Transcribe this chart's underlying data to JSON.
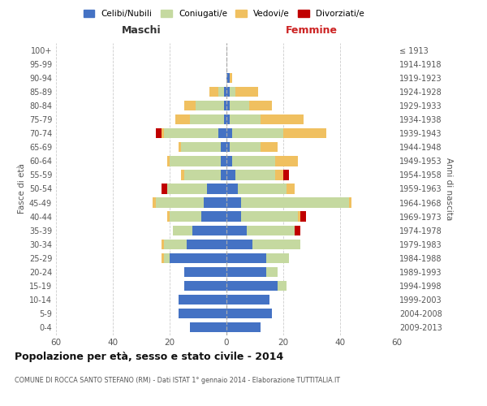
{
  "age_groups": [
    "0-4",
    "5-9",
    "10-14",
    "15-19",
    "20-24",
    "25-29",
    "30-34",
    "35-39",
    "40-44",
    "45-49",
    "50-54",
    "55-59",
    "60-64",
    "65-69",
    "70-74",
    "75-79",
    "80-84",
    "85-89",
    "90-94",
    "95-99",
    "100+"
  ],
  "birth_years": [
    "2009-2013",
    "2004-2008",
    "1999-2003",
    "1994-1998",
    "1989-1993",
    "1984-1988",
    "1979-1983",
    "1974-1978",
    "1969-1973",
    "1964-1968",
    "1959-1963",
    "1954-1958",
    "1949-1953",
    "1944-1948",
    "1939-1943",
    "1934-1938",
    "1929-1933",
    "1924-1928",
    "1919-1923",
    "1914-1918",
    "≤ 1913"
  ],
  "male": {
    "celibi": [
      13,
      17,
      17,
      15,
      15,
      20,
      14,
      12,
      9,
      8,
      7,
      2,
      2,
      2,
      3,
      1,
      1,
      1,
      0,
      0,
      0
    ],
    "coniugati": [
      0,
      0,
      0,
      0,
      0,
      2,
      8,
      7,
      11,
      17,
      14,
      13,
      18,
      14,
      19,
      12,
      10,
      2,
      0,
      0,
      0
    ],
    "vedovi": [
      0,
      0,
      0,
      0,
      0,
      1,
      1,
      0,
      1,
      1,
      0,
      1,
      1,
      1,
      1,
      5,
      4,
      3,
      0,
      0,
      0
    ],
    "divorziati": [
      0,
      0,
      0,
      0,
      0,
      0,
      0,
      0,
      0,
      0,
      2,
      0,
      0,
      0,
      2,
      0,
      0,
      0,
      0,
      0,
      0
    ]
  },
  "female": {
    "nubili": [
      12,
      16,
      15,
      18,
      14,
      14,
      9,
      7,
      5,
      5,
      4,
      3,
      2,
      1,
      2,
      1,
      1,
      1,
      1,
      0,
      0
    ],
    "coniugate": [
      0,
      0,
      0,
      3,
      4,
      8,
      17,
      17,
      20,
      38,
      17,
      14,
      15,
      11,
      18,
      11,
      7,
      2,
      0,
      0,
      0
    ],
    "vedove": [
      0,
      0,
      0,
      0,
      0,
      0,
      0,
      0,
      1,
      1,
      3,
      3,
      8,
      6,
      15,
      15,
      8,
      8,
      1,
      0,
      0
    ],
    "divorziate": [
      0,
      0,
      0,
      0,
      0,
      0,
      0,
      2,
      2,
      0,
      0,
      2,
      0,
      0,
      0,
      0,
      0,
      0,
      0,
      0,
      0
    ]
  },
  "colors": {
    "celibi_nubili": "#4472c4",
    "coniugati_e": "#c5d9a0",
    "vedovi_e": "#f0c060",
    "divorziati_e": "#c00000"
  },
  "xlim": 60,
  "title": "Popolazione per età, sesso e stato civile - 2014",
  "subtitle": "COMUNE DI ROCCA SANTO STEFANO (RM) - Dati ISTAT 1° gennaio 2014 - Elaborazione TUTTITALIA.IT",
  "ylabel": "Fasce di età",
  "ylabel_right": "Anni di nascita",
  "xlabel_maschi": "Maschi",
  "xlabel_femmine": "Femmine",
  "legend_labels": [
    "Celibi/Nubili",
    "Coniugati/e",
    "Vedovi/e",
    "Divorziati/e"
  ],
  "bg_color": "#ffffff",
  "grid_color": "#cccccc"
}
